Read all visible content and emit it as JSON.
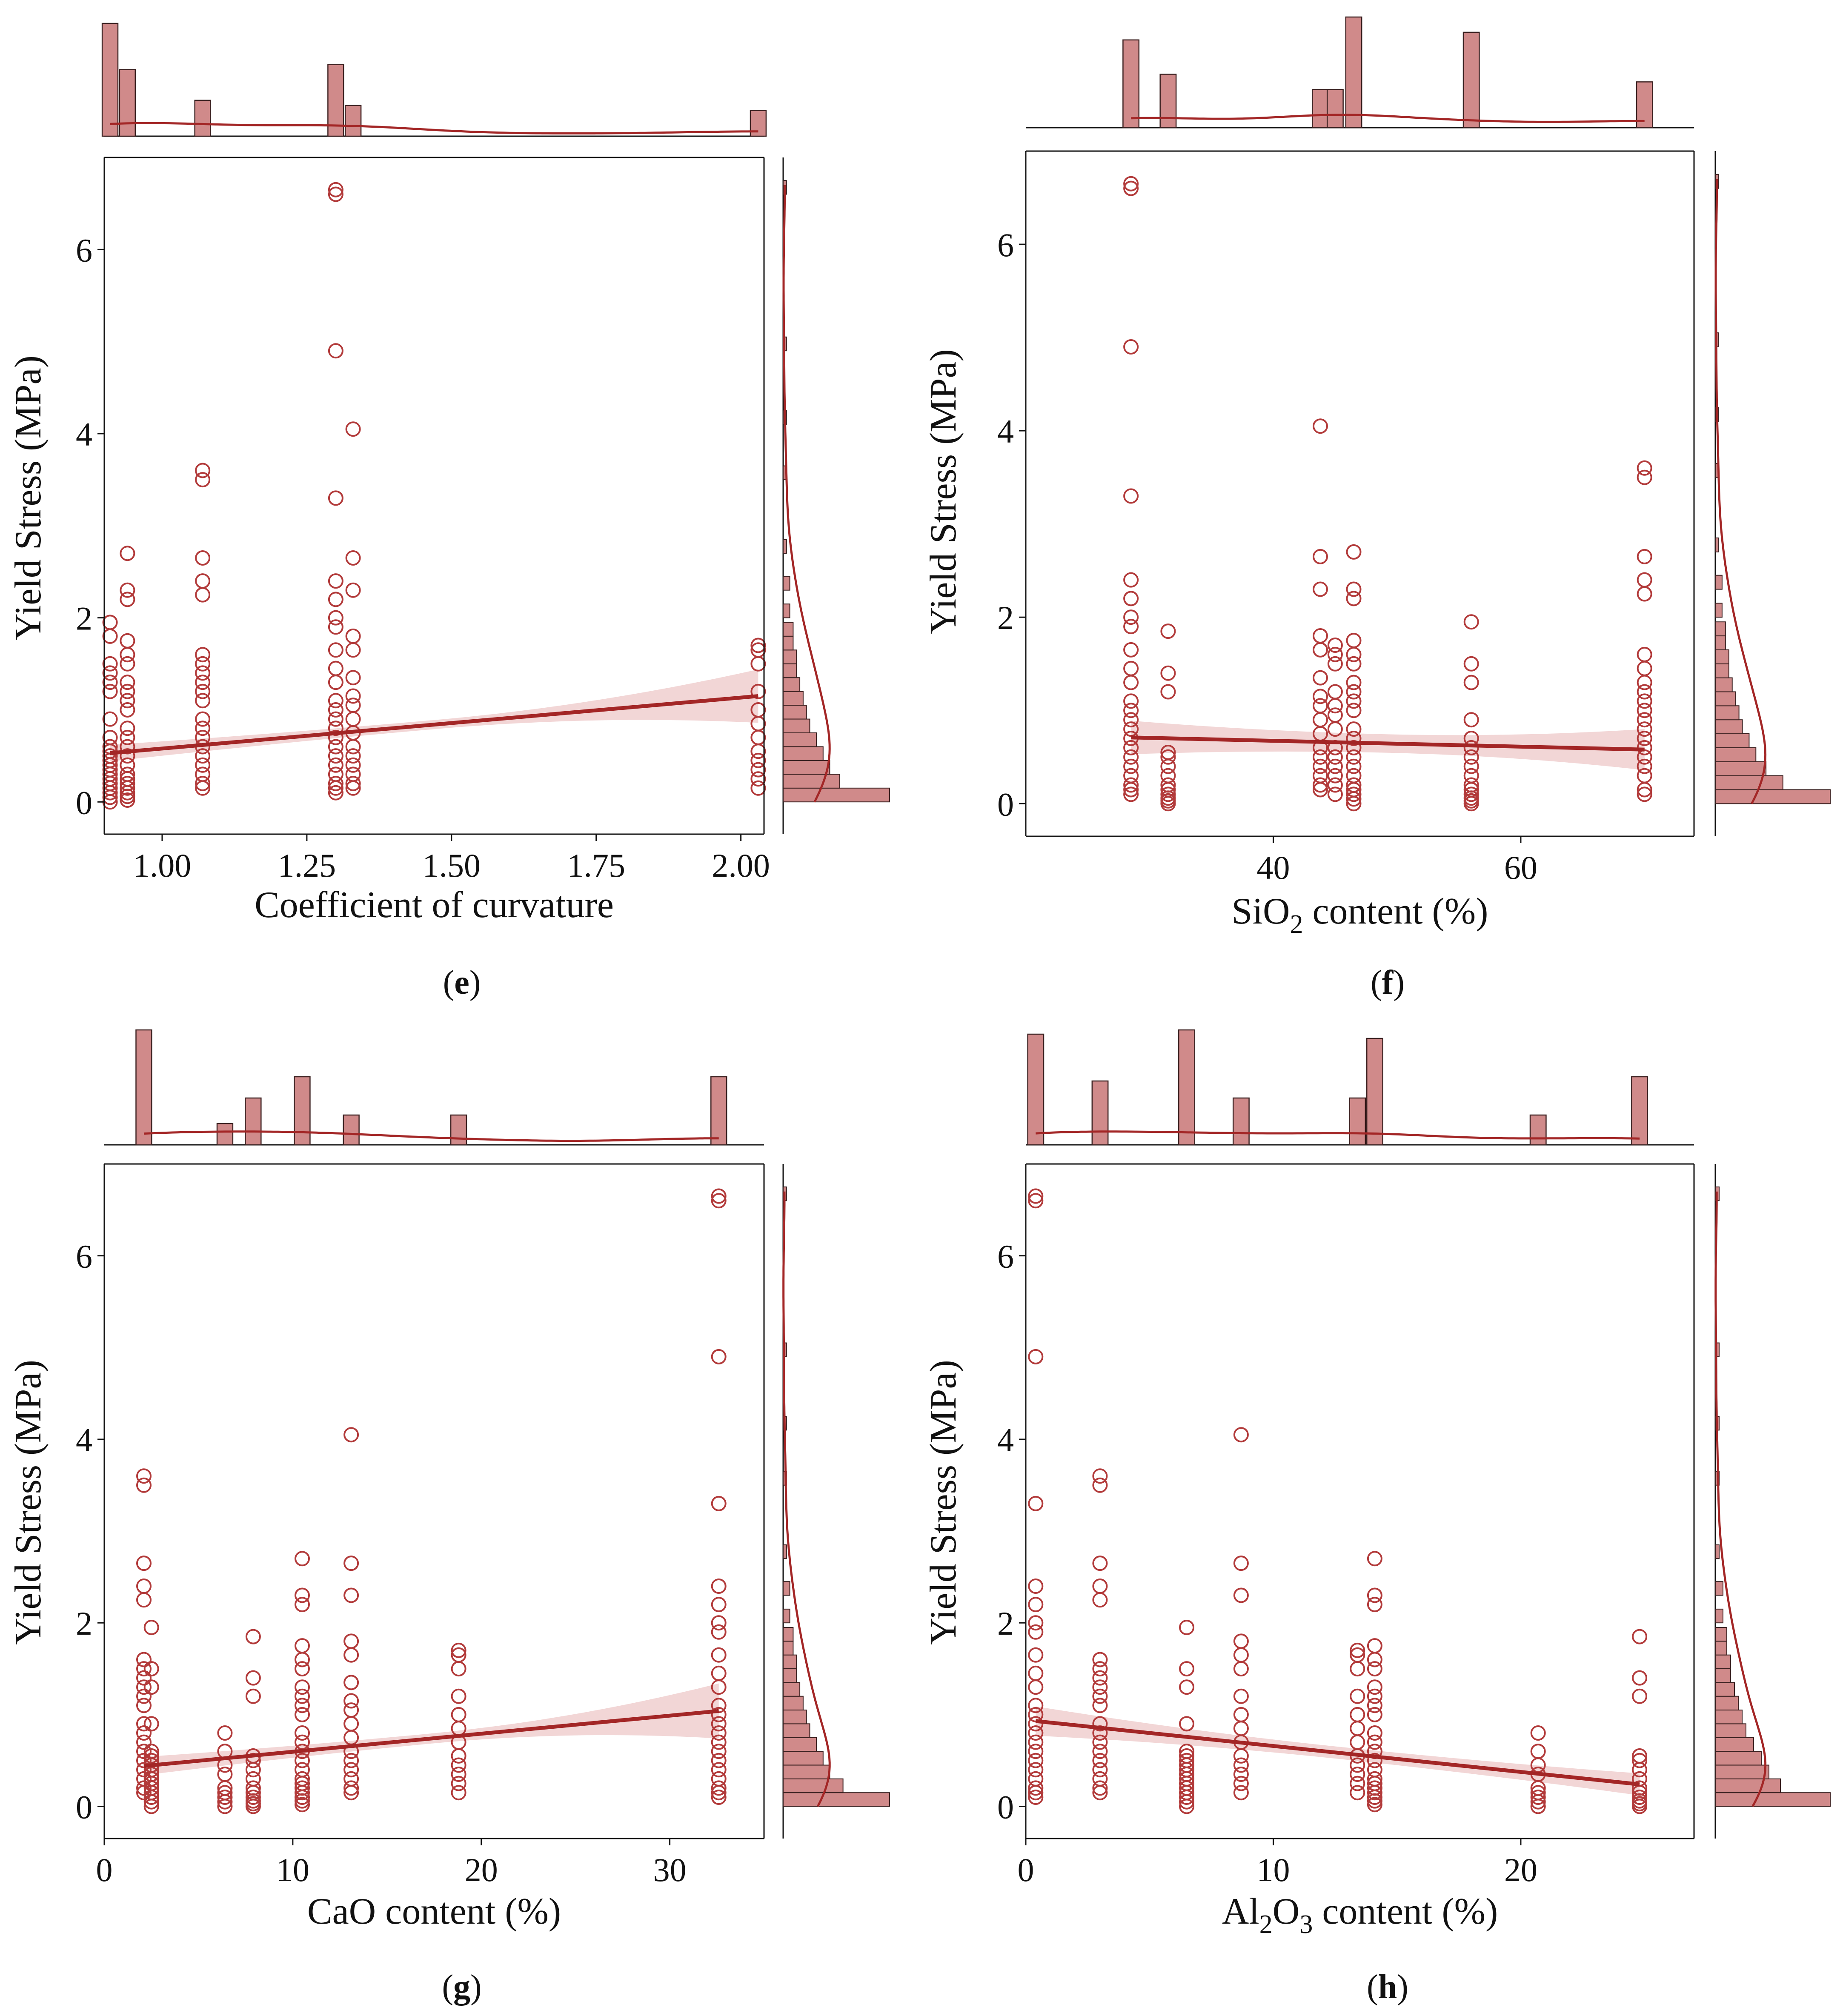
{
  "colors": {
    "marker": "#b23a3a",
    "line": "#a32626",
    "band": "#e8b5b5",
    "hist_fill": "#d08a8a",
    "hist_edge": "#3a2020",
    "axis": "#111111"
  },
  "chart_data": [
    {
      "type": "scatter",
      "panel_label": "e",
      "xlabel": "Coefficient of curvature",
      "ylabel": "Yield Stress (MPa)",
      "xlim": [
        0.9,
        2.04
      ],
      "ylim": [
        -0.35,
        7.0
      ],
      "x_ticks": [
        1.0,
        1.25,
        1.5,
        1.75,
        2.0
      ],
      "x_tick_labels": [
        "1.00",
        "1.25",
        "1.50",
        "1.75",
        "2.00"
      ],
      "y_ticks": [
        0,
        2,
        4,
        6
      ],
      "y_tick_labels": [
        "0",
        "2",
        "4",
        "6"
      ],
      "groups": [
        {
          "x": 0.91,
          "y": [
            0.0,
            0.05,
            0.1,
            0.15,
            0.2,
            0.25,
            0.3,
            0.35,
            0.4,
            0.45,
            0.5,
            0.55,
            0.6,
            0.7,
            0.9,
            1.2,
            1.3,
            1.4,
            1.5,
            1.8,
            1.95
          ]
        },
        {
          "x": 0.94,
          "y": [
            0.02,
            0.06,
            0.1,
            0.15,
            0.2,
            0.25,
            0.3,
            0.4,
            0.5,
            0.6,
            0.7,
            0.8,
            1.0,
            1.1,
            1.2,
            1.3,
            1.5,
            1.6,
            1.75,
            2.2,
            2.3,
            2.7
          ]
        },
        {
          "x": 1.07,
          "y": [
            0.15,
            0.2,
            0.3,
            0.4,
            0.5,
            0.6,
            0.7,
            0.8,
            0.9,
            1.1,
            1.2,
            1.3,
            1.4,
            1.5,
            1.6,
            2.25,
            2.4,
            2.65,
            3.5,
            3.6
          ]
        },
        {
          "x": 1.3,
          "y": [
            0.1,
            0.15,
            0.2,
            0.3,
            0.4,
            0.5,
            0.6,
            0.7,
            0.8,
            0.9,
            1.0,
            1.1,
            1.3,
            1.45,
            1.65,
            1.9,
            2.0,
            2.2,
            2.4,
            3.3,
            4.9,
            6.6,
            6.65
          ]
        },
        {
          "x": 1.33,
          "y": [
            0.15,
            0.2,
            0.3,
            0.4,
            0.5,
            0.6,
            0.75,
            0.9,
            1.05,
            1.15,
            1.35,
            1.65,
            1.8,
            2.3,
            2.65,
            4.05
          ]
        },
        {
          "x": 2.03,
          "y": [
            0.15,
            0.25,
            0.35,
            0.45,
            0.55,
            0.7,
            0.85,
            1.0,
            1.2,
            1.5,
            1.65,
            1.7
          ]
        }
      ],
      "regression": {
        "x": [
          0.91,
          2.03
        ],
        "y": [
          0.53,
          1.15
        ],
        "ci_halfwidth": [
          0.09,
          0.29
        ]
      },
      "top_hist": {
        "centers": [
          0.91,
          0.94,
          1.07,
          1.3,
          1.33,
          2.03
        ],
        "heights": [
          22,
          13,
          7,
          14,
          6,
          5
        ]
      },
      "right_hist": {
        "y_edges": [
          0.0,
          0.15,
          0.3,
          0.45,
          0.6,
          0.75,
          0.9,
          1.05,
          1.2,
          1.35,
          1.5,
          1.65,
          1.8,
          2.0,
          2.3,
          2.7,
          3.5,
          4.1,
          4.9,
          6.6
        ],
        "counts": [
          32,
          17,
          14,
          12,
          10,
          8,
          7,
          6,
          5,
          4,
          4,
          3,
          3,
          2,
          2,
          1,
          1,
          1,
          1,
          1
        ]
      }
    },
    {
      "type": "scatter",
      "panel_label": "f",
      "xlabel_prefix": "SiO",
      "xlabel_sub": "2",
      "xlabel_suffix": " content (%)",
      "ylabel": "Yield Stress (MPa)",
      "xlim": [
        20,
        74
      ],
      "ylim": [
        -0.35,
        7.0
      ],
      "x_ticks": [
        40,
        60
      ],
      "x_tick_labels": [
        "40",
        "60"
      ],
      "y_ticks": [
        0,
        2,
        4,
        6
      ],
      "y_tick_labels": [
        "0",
        "2",
        "4",
        "6"
      ],
      "groups": [
        {
          "x": 28.5,
          "y": [
            0.1,
            0.15,
            0.2,
            0.3,
            0.4,
            0.5,
            0.6,
            0.7,
            0.8,
            0.9,
            1.0,
            1.1,
            1.3,
            1.45,
            1.65,
            1.9,
            2.0,
            2.2,
            2.4,
            3.3,
            4.9,
            6.6,
            6.65
          ]
        },
        {
          "x": 31.5,
          "y": [
            0.0,
            0.03,
            0.06,
            0.1,
            0.15,
            0.2,
            0.3,
            0.4,
            0.5,
            0.55,
            1.2,
            1.4,
            1.85
          ]
        },
        {
          "x": 43.8,
          "y": [
            0.15,
            0.2,
            0.3,
            0.4,
            0.5,
            0.6,
            0.75,
            0.9,
            1.05,
            1.15,
            1.35,
            1.65,
            1.8,
            2.3,
            2.65,
            4.05
          ]
        },
        {
          "x": 45.0,
          "y": [
            0.1,
            0.2,
            0.3,
            0.4,
            0.5,
            0.6,
            0.8,
            0.95,
            1.05,
            1.2,
            1.5,
            1.6,
            1.7
          ]
        },
        {
          "x": 46.5,
          "y": [
            0.0,
            0.05,
            0.1,
            0.15,
            0.2,
            0.3,
            0.4,
            0.5,
            0.6,
            0.7,
            0.8,
            1.0,
            1.1,
            1.2,
            1.3,
            1.5,
            1.6,
            1.75,
            2.2,
            2.3,
            2.7
          ]
        },
        {
          "x": 56.0,
          "y": [
            0.0,
            0.03,
            0.06,
            0.1,
            0.15,
            0.2,
            0.3,
            0.4,
            0.5,
            0.6,
            0.7,
            0.9,
            1.3,
            1.5,
            1.95
          ]
        },
        {
          "x": 70.0,
          "y": [
            0.1,
            0.15,
            0.3,
            0.4,
            0.5,
            0.6,
            0.7,
            0.8,
            0.9,
            1.0,
            1.1,
            1.2,
            1.3,
            1.45,
            1.6,
            2.25,
            2.4,
            2.65,
            3.5,
            3.6
          ]
        }
      ],
      "regression": {
        "x": [
          28.5,
          70
        ],
        "y": [
          0.71,
          0.58
        ],
        "ci_halfwidth": [
          0.18,
          0.22
        ]
      },
      "top_hist": {
        "centers": [
          28.5,
          31.5,
          43.8,
          45.0,
          46.5,
          56.0,
          70.0
        ],
        "heights": [
          23,
          14,
          10,
          10,
          29,
          25,
          12
        ]
      },
      "right_hist": {
        "y_edges": [
          0.0,
          0.15,
          0.3,
          0.45,
          0.6,
          0.75,
          0.9,
          1.05,
          1.2,
          1.35,
          1.5,
          1.65,
          1.8,
          2.0,
          2.3,
          2.7,
          3.5,
          4.1,
          4.9,
          6.6
        ],
        "counts": [
          34,
          20,
          15,
          12,
          10,
          8,
          7,
          6,
          5,
          4,
          4,
          3,
          3,
          2,
          2,
          1,
          1,
          1,
          1,
          1
        ]
      }
    },
    {
      "type": "scatter",
      "panel_label": "g",
      "xlabel": "CaO content (%)",
      "ylabel": "Yield Stress (MPa)",
      "xlim": [
        0,
        35
      ],
      "ylim": [
        -0.35,
        7.0
      ],
      "x_ticks": [
        0,
        10,
        20,
        30
      ],
      "x_tick_labels": [
        "0",
        "10",
        "20",
        "30"
      ],
      "y_ticks": [
        0,
        2,
        4,
        6
      ],
      "y_tick_labels": [
        "0",
        "2",
        "4",
        "6"
      ],
      "groups": [
        {
          "x": 2.1,
          "y": [
            0.15,
            0.2,
            0.3,
            0.4,
            0.5,
            0.6,
            0.7,
            0.8,
            0.9,
            1.1,
            1.2,
            1.3,
            1.4,
            1.5,
            1.6,
            2.25,
            2.4,
            2.65,
            3.5,
            3.6
          ]
        },
        {
          "x": 2.5,
          "y": [
            0.0,
            0.05,
            0.1,
            0.15,
            0.2,
            0.25,
            0.3,
            0.35,
            0.4,
            0.45,
            0.5,
            0.55,
            0.6,
            0.9,
            1.3,
            1.5,
            1.95
          ]
        },
        {
          "x": 6.4,
          "y": [
            0.0,
            0.05,
            0.1,
            0.15,
            0.2,
            0.35,
            0.45,
            0.6,
            0.8
          ]
        },
        {
          "x": 7.9,
          "y": [
            0.0,
            0.03,
            0.06,
            0.1,
            0.15,
            0.2,
            0.3,
            0.4,
            0.5,
            0.55,
            1.2,
            1.4,
            1.85
          ]
        },
        {
          "x": 10.5,
          "y": [
            0.02,
            0.06,
            0.1,
            0.15,
            0.2,
            0.25,
            0.3,
            0.4,
            0.5,
            0.6,
            0.7,
            0.8,
            1.0,
            1.1,
            1.2,
            1.3,
            1.5,
            1.6,
            1.75,
            2.2,
            2.3,
            2.7
          ]
        },
        {
          "x": 13.1,
          "y": [
            0.15,
            0.2,
            0.3,
            0.4,
            0.5,
            0.6,
            0.75,
            0.9,
            1.05,
            1.15,
            1.35,
            1.65,
            1.8,
            2.3,
            2.65,
            4.05
          ]
        },
        {
          "x": 18.8,
          "y": [
            0.15,
            0.25,
            0.35,
            0.45,
            0.55,
            0.7,
            0.85,
            1.0,
            1.2,
            1.5,
            1.65,
            1.7
          ]
        },
        {
          "x": 32.6,
          "y": [
            0.1,
            0.15,
            0.2,
            0.3,
            0.4,
            0.5,
            0.6,
            0.7,
            0.8,
            0.9,
            1.0,
            1.1,
            1.3,
            1.45,
            1.65,
            1.9,
            2.0,
            2.2,
            2.4,
            3.3,
            4.9,
            6.6,
            6.65
          ]
        }
      ],
      "regression": {
        "x": [
          2.1,
          32.6
        ],
        "y": [
          0.44,
          1.04
        ],
        "ci_halfwidth": [
          0.1,
          0.3
        ]
      },
      "top_hist": {
        "centers": [
          2.1,
          6.4,
          7.9,
          10.5,
          13.1,
          18.8,
          32.6
        ],
        "heights": [
          27,
          5,
          11,
          16,
          7,
          7,
          16
        ]
      },
      "right_hist": {
        "y_edges": [
          0.0,
          0.15,
          0.3,
          0.45,
          0.6,
          0.75,
          0.9,
          1.05,
          1.2,
          1.35,
          1.5,
          1.65,
          1.8,
          2.0,
          2.3,
          2.7,
          3.5,
          4.1,
          4.9,
          6.6
        ],
        "counts": [
          32,
          18,
          14,
          12,
          10,
          8,
          7,
          6,
          5,
          4,
          4,
          3,
          3,
          2,
          2,
          1,
          1,
          1,
          1,
          1
        ]
      }
    },
    {
      "type": "scatter",
      "panel_label": "h",
      "xlabel_prefix": "Al",
      "xlabel_sub": "2",
      "xlabel_mid": "O",
      "xlabel_sub2": "3",
      "xlabel_suffix": " content (%)",
      "ylabel": "Yield Stress (MPa)",
      "xlim": [
        0,
        27
      ],
      "ylim": [
        -0.35,
        7.0
      ],
      "x_ticks": [
        0,
        10,
        20
      ],
      "x_tick_labels": [
        "0",
        "10",
        "20"
      ],
      "y_ticks": [
        0,
        2,
        4,
        6
      ],
      "y_tick_labels": [
        "0",
        "2",
        "4",
        "6"
      ],
      "groups": [
        {
          "x": 0.4,
          "y": [
            0.1,
            0.15,
            0.2,
            0.3,
            0.4,
            0.5,
            0.6,
            0.7,
            0.8,
            0.9,
            1.0,
            1.1,
            1.3,
            1.45,
            1.65,
            1.9,
            2.0,
            2.2,
            2.4,
            3.3,
            4.9,
            6.6,
            6.65
          ]
        },
        {
          "x": 3.0,
          "y": [
            0.15,
            0.2,
            0.3,
            0.4,
            0.5,
            0.6,
            0.7,
            0.8,
            0.9,
            1.1,
            1.2,
            1.3,
            1.4,
            1.5,
            1.6,
            2.25,
            2.4,
            2.65,
            3.5,
            3.6
          ]
        },
        {
          "x": 6.5,
          "y": [
            0.0,
            0.05,
            0.1,
            0.15,
            0.2,
            0.25,
            0.3,
            0.35,
            0.4,
            0.45,
            0.5,
            0.55,
            0.6,
            0.9,
            1.3,
            1.5,
            1.95
          ]
        },
        {
          "x": 8.7,
          "y": [
            0.15,
            0.25,
            0.35,
            0.45,
            0.55,
            0.7,
            0.85,
            1.0,
            1.2,
            1.5,
            1.65,
            1.8,
            2.3,
            2.65,
            4.05
          ]
        },
        {
          "x": 13.4,
          "y": [
            0.15,
            0.25,
            0.35,
            0.45,
            0.55,
            0.7,
            0.85,
            1.0,
            1.2,
            1.5,
            1.65,
            1.7
          ]
        },
        {
          "x": 14.1,
          "y": [
            0.02,
            0.06,
            0.1,
            0.15,
            0.2,
            0.25,
            0.3,
            0.4,
            0.5,
            0.6,
            0.7,
            0.8,
            1.0,
            1.1,
            1.2,
            1.3,
            1.5,
            1.6,
            1.75,
            2.2,
            2.3,
            2.7
          ]
        },
        {
          "x": 20.7,
          "y": [
            0.0,
            0.05,
            0.1,
            0.15,
            0.2,
            0.35,
            0.45,
            0.6,
            0.8
          ]
        },
        {
          "x": 24.8,
          "y": [
            0.0,
            0.03,
            0.06,
            0.1,
            0.15,
            0.2,
            0.3,
            0.4,
            0.5,
            0.55,
            1.2,
            1.4,
            1.85
          ]
        }
      ],
      "regression": {
        "x": [
          0.4,
          24.8
        ],
        "y": [
          0.93,
          0.24
        ],
        "ci_halfwidth": [
          0.16,
          0.12
        ]
      },
      "top_hist": {
        "centers": [
          0.4,
          3.0,
          6.5,
          8.7,
          13.4,
          14.1,
          20.7,
          24.8
        ],
        "heights": [
          26,
          15,
          27,
          11,
          11,
          25,
          7,
          16
        ]
      },
      "right_hist": {
        "y_edges": [
          0.0,
          0.15,
          0.3,
          0.45,
          0.6,
          0.75,
          0.9,
          1.05,
          1.2,
          1.35,
          1.5,
          1.65,
          1.8,
          2.0,
          2.3,
          2.7,
          3.5,
          4.1,
          4.9,
          6.6
        ],
        "counts": [
          30,
          17,
          14,
          12,
          10,
          8,
          7,
          6,
          5,
          4,
          4,
          3,
          3,
          2,
          2,
          1,
          1,
          1,
          1,
          1
        ]
      }
    }
  ]
}
